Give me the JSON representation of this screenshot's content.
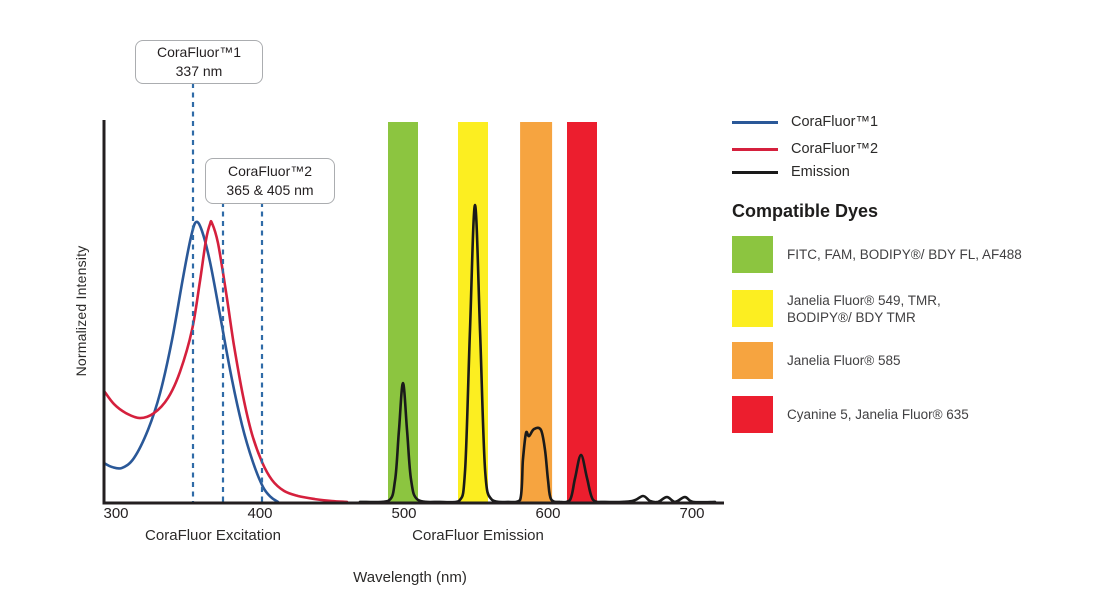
{
  "figure": {
    "y_axis_label": "Normalized Intensity",
    "x_axis_label": "Wavelength (nm)",
    "section_labels": {
      "excitation": "CoraFluor Excitation",
      "emission": "CoraFluor Emission"
    }
  },
  "legend": {
    "entries": [
      {
        "label": "CoraFluor™1",
        "color": "#2A5898"
      },
      {
        "label": "CoraFluor™2",
        "color": "#D5203D"
      },
      {
        "label": "Emission",
        "color": "#1A1A1A"
      }
    ],
    "compatible_dyes_title": "Compatible Dyes",
    "dyes": [
      {
        "color": "#8CC540",
        "lines": [
          "FITC, FAM, BODIPY®/ BDY FL, AF488"
        ]
      },
      {
        "color": "#FCEE21",
        "lines": [
          "Janelia Fluor® 549, TMR,",
          "BODIPY®/ BDY TMR"
        ]
      },
      {
        "color": "#F6A440",
        "lines": [
          "Janelia Fluor® 585"
        ]
      },
      {
        "color": "#EC1E2E",
        "lines": [
          "Cyanine 5, Janelia Fluor® 635"
        ]
      }
    ]
  },
  "chart_data": {
    "type": "line",
    "title": "",
    "xlabel": "Wavelength (nm)",
    "ylabel": "Normalized Intensity",
    "x_ticks": [
      300,
      400,
      500,
      600,
      700
    ],
    "xlim": [
      292,
      722
    ],
    "ylim": [
      0,
      1.1
    ],
    "grid": false,
    "legend_position": "right",
    "annotations": [
      {
        "title": "CoraFluor™1",
        "subtitle": "337 nm",
        "lines_nm": [
          353.5
        ]
      },
      {
        "title": "CoraFluor™2",
        "subtitle": "365 & 405 nm",
        "lines_nm": [
          374.3,
          401.4
        ]
      }
    ],
    "bands": [
      {
        "name": "FITC, FAM, BODIPY®/ BDY FL, AF488",
        "color": "#8CC540",
        "nm": [
          488.9,
          509.7
        ]
      },
      {
        "name": "Janelia Fluor® 549, TMR, BODIPY®/ BDY TMR",
        "color": "#FCEE21",
        "nm": [
          537.5,
          558.3
        ]
      },
      {
        "name": "Janelia Fluor® 585",
        "color": "#F6A440",
        "nm": [
          580.6,
          602.8
        ]
      },
      {
        "name": "Cyanine 5, Janelia Fluor® 635",
        "color": "#EC1E2E",
        "nm": [
          613.2,
          634.0
        ]
      }
    ],
    "series": [
      {
        "name": "CoraFluor™1 excitation",
        "color": "#2A5898",
        "points": [
          [
            291.7,
            0.142
          ],
          [
            297.2,
            0.128
          ],
          [
            304.2,
            0.125
          ],
          [
            312.5,
            0.16
          ],
          [
            322.2,
            0.26
          ],
          [
            330.6,
            0.391
          ],
          [
            338.9,
            0.58
          ],
          [
            346.5,
            0.801
          ],
          [
            352.1,
            0.947
          ],
          [
            355.6,
            1.0
          ],
          [
            359.7,
            0.968
          ],
          [
            365.3,
            0.858
          ],
          [
            372.2,
            0.669
          ],
          [
            379.9,
            0.455
          ],
          [
            387.5,
            0.278
          ],
          [
            395.1,
            0.146
          ],
          [
            402.1,
            0.057
          ],
          [
            407.6,
            0.021
          ],
          [
            412.5,
            0.004
          ]
        ]
      },
      {
        "name": "CoraFluor™2 excitation",
        "color": "#D5203D",
        "points": [
          [
            291.7,
            0.399
          ],
          [
            298.6,
            0.352
          ],
          [
            306.9,
            0.32
          ],
          [
            316.7,
            0.302
          ],
          [
            326.4,
            0.32
          ],
          [
            336.1,
            0.374
          ],
          [
            344.4,
            0.466
          ],
          [
            352.8,
            0.616
          ],
          [
            358.3,
            0.79
          ],
          [
            362.5,
            0.936
          ],
          [
            365.3,
            0.993
          ],
          [
            366.7,
            0.996
          ],
          [
            370.8,
            0.925
          ],
          [
            376.4,
            0.751
          ],
          [
            381.9,
            0.562
          ],
          [
            388.2,
            0.381
          ],
          [
            394.4,
            0.246
          ],
          [
            401.4,
            0.146
          ],
          [
            408.3,
            0.082
          ],
          [
            416.7,
            0.043
          ],
          [
            426.4,
            0.025
          ],
          [
            438.2,
            0.014
          ],
          [
            450,
            0.007
          ],
          [
            460.4,
            0.004
          ]
        ]
      },
      {
        "name": "Emission",
        "color": "#1A1A1A",
        "points": [
          [
            469.4,
            0.004
          ],
          [
            488.9,
            0.007
          ],
          [
            493.8,
            0.082
          ],
          [
            496.5,
            0.26
          ],
          [
            499.3,
            0.427
          ],
          [
            502.1,
            0.26
          ],
          [
            504.9,
            0.082
          ],
          [
            509.7,
            0.011
          ],
          [
            525,
            0.004
          ],
          [
            538.2,
            0.007
          ],
          [
            542.4,
            0.117
          ],
          [
            545.8,
            0.616
          ],
          [
            549.3,
            1.06
          ],
          [
            552.8,
            0.616
          ],
          [
            556.3,
            0.117
          ],
          [
            561.1,
            0.011
          ],
          [
            572.2,
            0.004
          ],
          [
            580.6,
            0.011
          ],
          [
            582.6,
            0.153
          ],
          [
            584.7,
            0.249
          ],
          [
            586.8,
            0.238
          ],
          [
            590.3,
            0.263
          ],
          [
            595.1,
            0.26
          ],
          [
            597.9,
            0.189
          ],
          [
            600,
            0.082
          ],
          [
            602.1,
            0.014
          ],
          [
            608.3,
            0.004
          ],
          [
            615.3,
            0.011
          ],
          [
            618.8,
            0.089
          ],
          [
            622.9,
            0.171
          ],
          [
            627.1,
            0.089
          ],
          [
            631.3,
            0.011
          ],
          [
            639.6,
            0.004
          ],
          [
            658.3,
            0.007
          ],
          [
            666,
            0.025
          ],
          [
            670.8,
            0.007
          ],
          [
            676.4,
            0.004
          ],
          [
            682.6,
            0.021
          ],
          [
            688.2,
            0.004
          ],
          [
            695.1,
            0.021
          ],
          [
            700.7,
            0.004
          ],
          [
            716,
            0.004
          ]
        ]
      }
    ]
  }
}
